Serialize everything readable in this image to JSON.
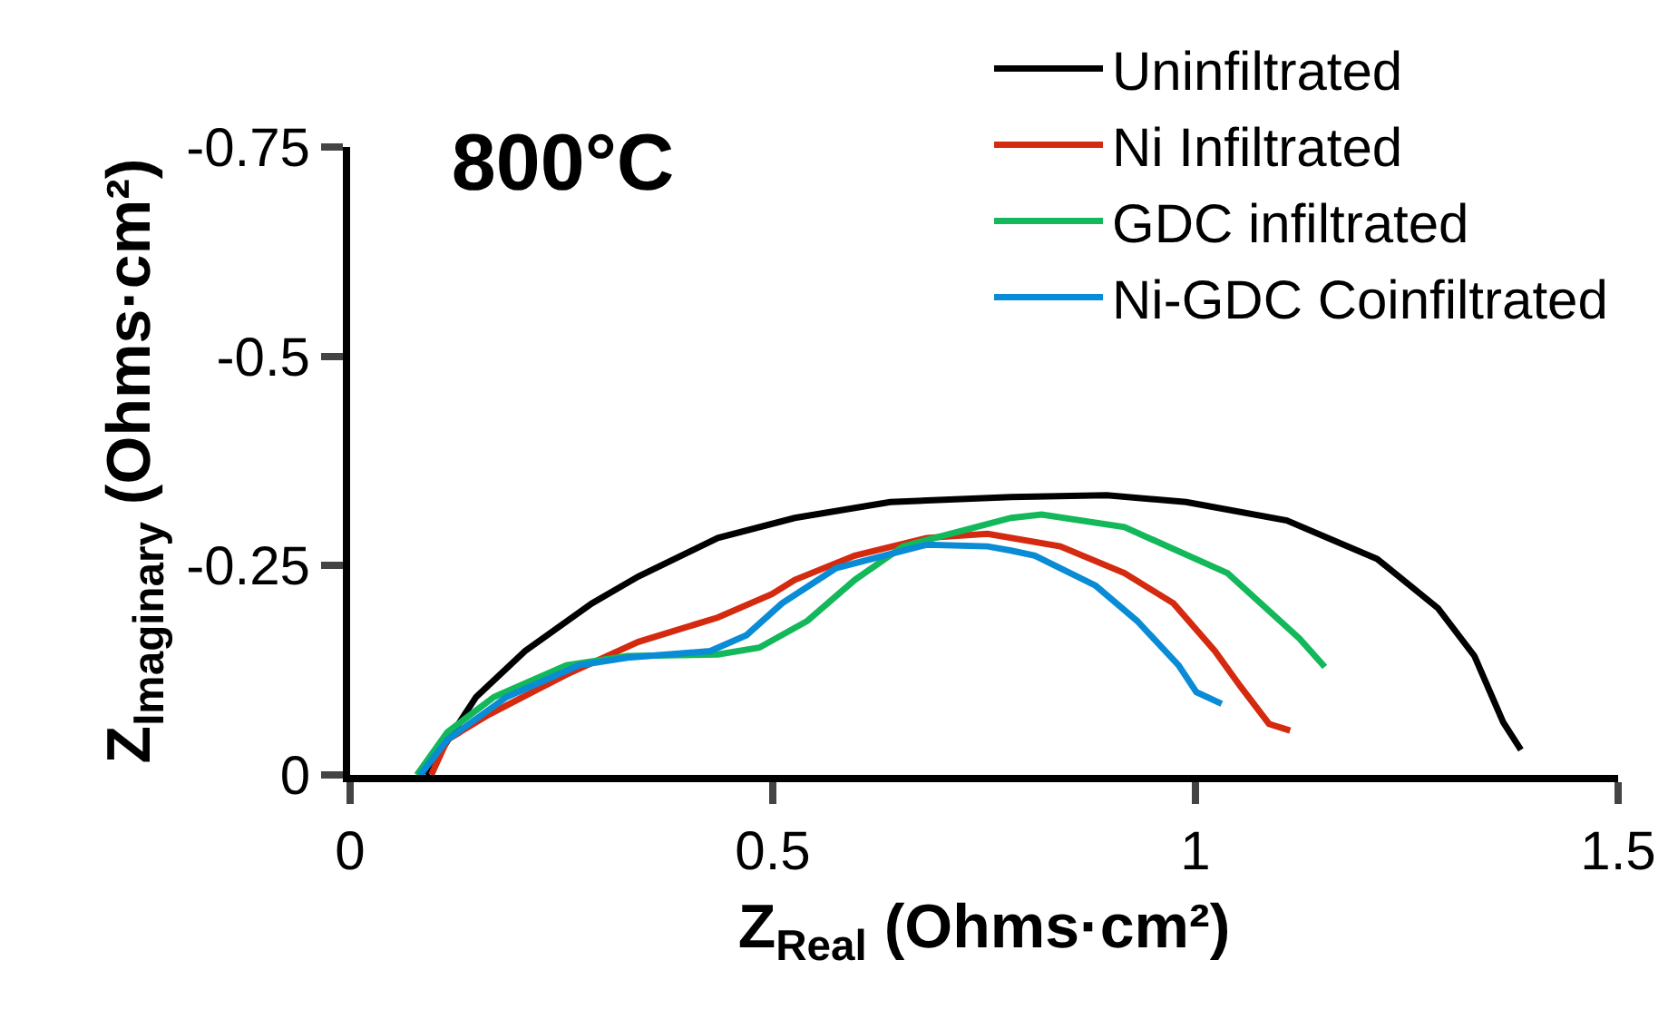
{
  "chart_data": {
    "type": "line",
    "title": "800°C",
    "xlabel": "Z$_{Real}$ (Ohms·cm²)",
    "ylabel": "Z$_{Imaginary}$ (Ohms·cm²)",
    "xlim": [
      0,
      1.5
    ],
    "xticks": [
      0,
      0.5,
      1,
      1.5
    ],
    "ylim": [
      0,
      -0.75
    ],
    "yticks": [
      0,
      -0.25,
      -0.5,
      -0.75
    ],
    "grid": false,
    "legend": "top right",
    "marker": "none",
    "line_style": "solid",
    "series": [
      {
        "name": "Uninfiltrated",
        "color": "#000000",
        "x": [
          0.09,
          0.094,
          0.149,
          0.207,
          0.286,
          0.341,
          0.435,
          0.526,
          0.639,
          0.782,
          0.895,
          0.989,
          1.108,
          1.215,
          1.287,
          1.33,
          1.364,
          1.385
        ],
        "values": [
          0,
          -0.008,
          -0.093,
          -0.148,
          -0.205,
          -0.237,
          -0.283,
          -0.307,
          -0.326,
          -0.332,
          -0.334,
          -0.326,
          -0.304,
          -0.258,
          -0.199,
          -0.142,
          -0.063,
          -0.03
        ]
      },
      {
        "name": "Ni Infiltrated",
        "color": "#d42a10",
        "x": [
          0.096,
          0.115,
          0.164,
          0.256,
          0.341,
          0.435,
          0.499,
          0.526,
          0.597,
          0.682,
          0.754,
          0.84,
          0.916,
          0.974,
          1.023,
          1.053,
          1.087,
          1.112
        ],
        "values": [
          0,
          -0.042,
          -0.072,
          -0.12,
          -0.159,
          -0.188,
          -0.216,
          -0.233,
          -0.262,
          -0.283,
          -0.288,
          -0.273,
          -0.241,
          -0.205,
          -0.148,
          -0.106,
          -0.061,
          -0.053
        ]
      },
      {
        "name": "GDC infiltrated",
        "color": "#12b85a",
        "x": [
          0.079,
          0.115,
          0.17,
          0.256,
          0.328,
          0.435,
          0.484,
          0.541,
          0.597,
          0.654,
          0.782,
          0.818,
          0.916,
          1.038,
          1.123,
          1.153
        ],
        "values": [
          0,
          -0.051,
          -0.093,
          -0.131,
          -0.142,
          -0.144,
          -0.152,
          -0.184,
          -0.233,
          -0.273,
          -0.307,
          -0.311,
          -0.296,
          -0.241,
          -0.163,
          -0.129
        ]
      },
      {
        "name": "Ni-GDC Coinfiltrated",
        "color": "#0a8bd6",
        "x": [
          0.083,
          0.115,
          0.185,
          0.271,
          0.328,
          0.426,
          0.469,
          0.511,
          0.575,
          0.682,
          0.754,
          0.782,
          0.81,
          0.882,
          0.931,
          0.98,
          1.001,
          1.031
        ],
        "values": [
          0,
          -0.042,
          -0.093,
          -0.131,
          -0.14,
          -0.148,
          -0.167,
          -0.205,
          -0.247,
          -0.275,
          -0.273,
          -0.268,
          -0.262,
          -0.226,
          -0.184,
          -0.131,
          -0.099,
          -0.085
        ]
      }
    ]
  }
}
